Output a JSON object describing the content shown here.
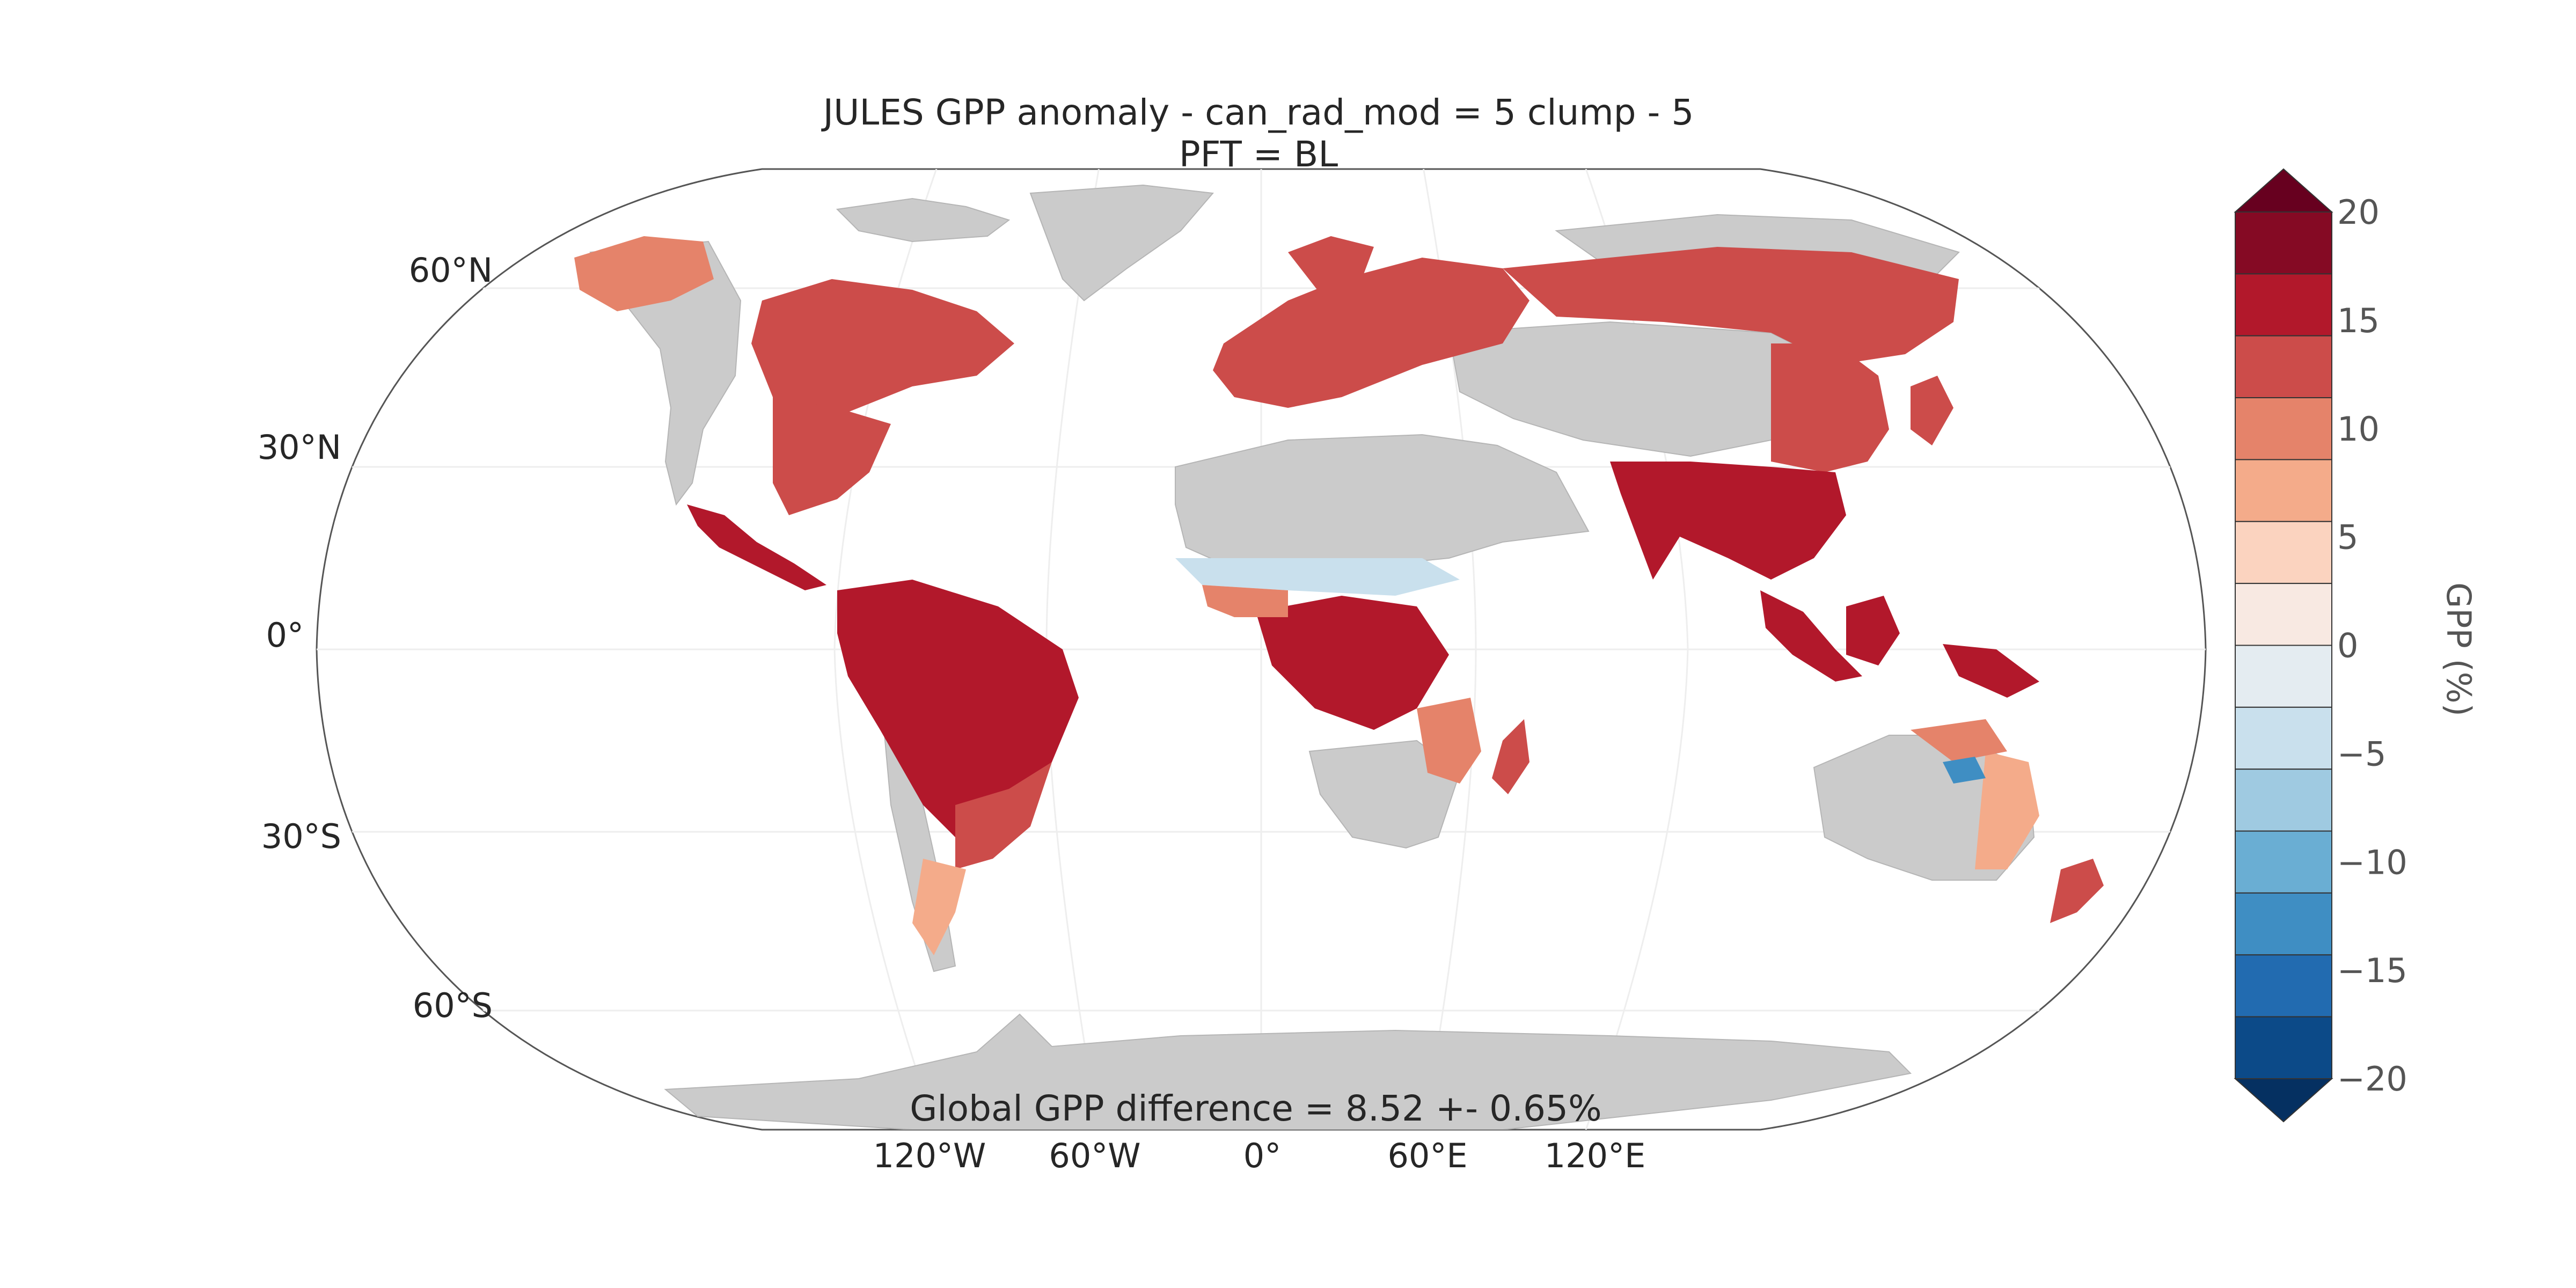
{
  "title_line1": "JULES GPP anomaly - can_rad_mod = 5 clump - 5",
  "title_line2": "PFT = BL",
  "footer_text": "Global GPP difference = 8.52 +- 0.65%",
  "lat_labels": [
    "60°N",
    "30°N",
    "0°",
    "30°S",
    "60°S"
  ],
  "lon_labels": [
    "120°W",
    "60°W",
    "0°",
    "60°E",
    "120°E"
  ],
  "map_settings": {
    "projection": "robinson",
    "land_background_color": "#cbcbcb",
    "ocean_color": "#ffffff",
    "grid": true
  },
  "chart_data": {
    "type": "heatmap",
    "colorbar": {
      "label": "GPP (%)",
      "ticks": [
        "20",
        "15",
        "10",
        "5",
        "0",
        "−5",
        "−10",
        "−15",
        "−20"
      ],
      "range": [
        -20,
        20
      ],
      "extend": "both",
      "colors_top_to_bottom": [
        "#67001f",
        "#850a24",
        "#b2182b",
        "#cc4c4a",
        "#e5836a",
        "#f4ab8a",
        "#fbd3bf",
        "#f8e9e2",
        "#e4ecf1",
        "#c9e0ed",
        "#9fcae1",
        "#6aaed3",
        "#3f8ec3",
        "#226bb0",
        "#0c4a88",
        "#053061"
      ]
    }
  }
}
